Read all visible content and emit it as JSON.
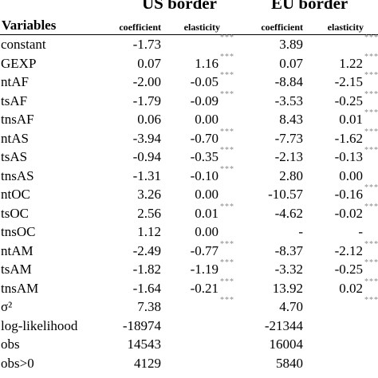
{
  "table": {
    "group_headers": {
      "us": "US border",
      "eu": "EU border"
    },
    "variables_header": "Variables",
    "subheaders": {
      "us_coefficient": "coefficient",
      "us_elasticity": "elasticity",
      "eu_coefficient": "coefficient",
      "eu_elasticity": "elasticity"
    },
    "rows": [
      {
        "var": "constant",
        "us_coef": "-1.73",
        "us_elas": "",
        "us_stars": "***",
        "eu_coef": "3.89",
        "eu_elas": "",
        "eu_stars": "***"
      },
      {
        "var": "GEXP",
        "us_coef": "0.07",
        "us_elas": "1.16",
        "us_stars": "***",
        "eu_coef": "0.07",
        "eu_elas": "1.22",
        "eu_stars": "***"
      },
      {
        "var": "ntAF",
        "us_coef": "-2.00",
        "us_elas": "-0.05",
        "us_stars": "***",
        "eu_coef": "-8.84",
        "eu_elas": "-2.15",
        "eu_stars": "***"
      },
      {
        "var": "tsAF",
        "us_coef": "-1.79",
        "us_elas": "-0.09",
        "us_stars": "***",
        "eu_coef": "-3.53",
        "eu_elas": "-0.25",
        "eu_stars": "***"
      },
      {
        "var": "tnsAF",
        "us_coef": "0.06",
        "us_elas": "0.00",
        "us_stars": "",
        "eu_coef": "8.43",
        "eu_elas": "0.01",
        "eu_stars": "***"
      },
      {
        "var": "ntAS",
        "us_coef": "-3.94",
        "us_elas": "-0.70",
        "us_stars": "***",
        "eu_coef": "-7.73",
        "eu_elas": "-1.62",
        "eu_stars": "***"
      },
      {
        "var": "tsAS",
        "us_coef": "-0.94",
        "us_elas": "-0.35",
        "us_stars": "***",
        "eu_coef": "-2.13",
        "eu_elas": "-0.13",
        "eu_stars": "***"
      },
      {
        "var": "tnsAS",
        "us_coef": "-1.31",
        "us_elas": "-0.10",
        "us_stars": "***",
        "eu_coef": "2.80",
        "eu_elas": "0.00",
        "eu_stars": ""
      },
      {
        "var": "ntOC",
        "us_coef": "3.26",
        "us_elas": "0.00",
        "us_stars": "",
        "eu_coef": "-10.57",
        "eu_elas": "-0.16",
        "eu_stars": "***"
      },
      {
        "var": "tsOC",
        "us_coef": "2.56",
        "us_elas": "0.01",
        "us_stars": "***",
        "eu_coef": "-4.62",
        "eu_elas": "-0.02",
        "eu_stars": "***"
      },
      {
        "var": "tnsOC",
        "us_coef": "1.12",
        "us_elas": "0.00",
        "us_stars": "",
        "eu_coef": "-",
        "eu_elas": "-",
        "eu_stars": ""
      },
      {
        "var": "ntAM",
        "us_coef": "-2.49",
        "us_elas": "-0.77",
        "us_stars": "***",
        "eu_coef": "-8.37",
        "eu_elas": "-2.12",
        "eu_stars": "***"
      },
      {
        "var": "tsAM",
        "us_coef": "-1.82",
        "us_elas": "-1.19",
        "us_stars": "***",
        "eu_coef": "-3.32",
        "eu_elas": "-0.25",
        "eu_stars": "***"
      },
      {
        "var": "tnsAM",
        "us_coef": "-1.64",
        "us_elas": "-0.21",
        "us_stars": "***",
        "eu_coef": "13.92",
        "eu_elas": "0.02",
        "eu_stars": "***"
      },
      {
        "var": "σ²",
        "us_coef": "7.38",
        "us_elas": "",
        "us_stars": "***",
        "eu_coef": "4.70",
        "eu_elas": "",
        "eu_stars": "***"
      },
      {
        "var": "log-likelihood",
        "us_coef": "-18974",
        "us_elas": "",
        "us_stars": "",
        "eu_coef": "-21344",
        "eu_elas": "",
        "eu_stars": ""
      },
      {
        "var": "obs",
        "us_coef": "14543",
        "us_elas": "",
        "us_stars": "",
        "eu_coef": "16004",
        "eu_elas": "",
        "eu_stars": ""
      },
      {
        "var": "obs>0",
        "us_coef": "4129",
        "us_elas": "",
        "us_stars": "",
        "eu_coef": "5840",
        "eu_elas": "",
        "eu_stars": ""
      }
    ]
  }
}
